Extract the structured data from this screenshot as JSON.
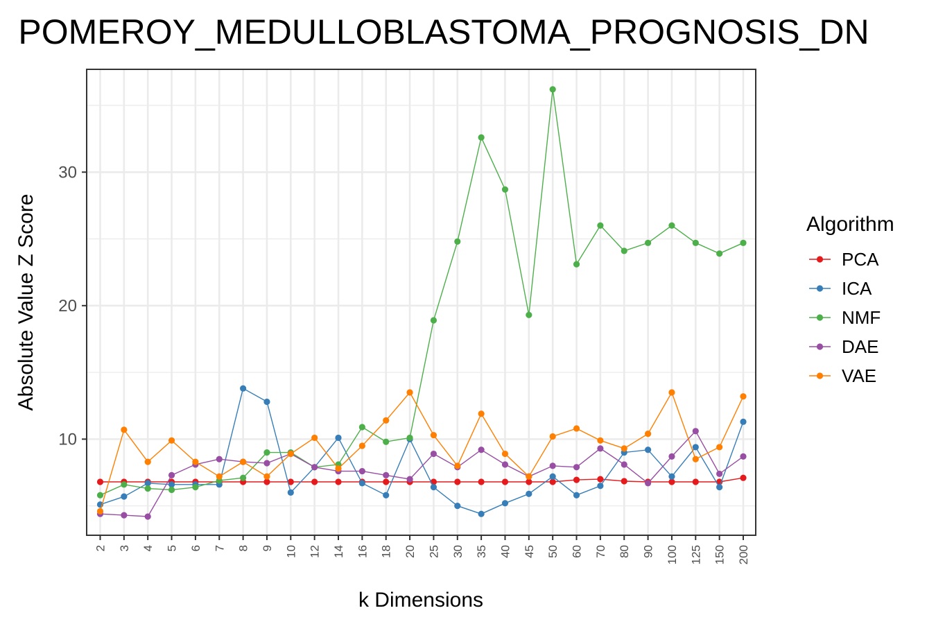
{
  "chart_data": {
    "type": "line",
    "title": "POMEROY_MEDULLOBLASTOMA_PROGNOSIS_DN",
    "xlabel": "k Dimensions",
    "ylabel": "Absolute Value Z Score",
    "categories": [
      "2",
      "3",
      "4",
      "5",
      "6",
      "7",
      "8",
      "9",
      "10",
      "12",
      "14",
      "16",
      "18",
      "20",
      "25",
      "30",
      "35",
      "40",
      "45",
      "50",
      "60",
      "70",
      "80",
      "90",
      "100",
      "125",
      "150",
      "200"
    ],
    "ylim": [
      2.8,
      37.7
    ],
    "yticks": [
      10,
      20,
      30
    ],
    "grid": true,
    "legend": {
      "title": "Algorithm",
      "position": "right"
    },
    "series": [
      {
        "name": "PCA",
        "color": "#e41a1c",
        "values": [
          6.8,
          6.8,
          6.8,
          6.8,
          6.8,
          6.8,
          6.8,
          6.8,
          6.8,
          6.8,
          6.8,
          6.8,
          6.8,
          6.8,
          6.8,
          6.8,
          6.8,
          6.8,
          6.8,
          6.8,
          6.95,
          7.0,
          6.85,
          6.8,
          6.8,
          6.8,
          6.8,
          7.1
        ]
      },
      {
        "name": "ICA",
        "color": "#377eb8",
        "values": [
          5.1,
          5.7,
          6.7,
          6.6,
          6.6,
          6.6,
          13.8,
          12.8,
          6.0,
          7.9,
          10.1,
          6.7,
          5.8,
          10.0,
          6.4,
          5.0,
          4.4,
          5.2,
          5.9,
          7.2,
          5.8,
          6.5,
          9.0,
          9.2,
          7.2,
          9.4,
          6.4,
          11.3
        ]
      },
      {
        "name": "NMF",
        "color": "#4daf4a",
        "values": [
          5.8,
          6.6,
          6.3,
          6.2,
          6.4,
          6.9,
          7.1,
          9.0,
          9.0,
          7.9,
          8.1,
          10.9,
          9.8,
          10.1,
          18.9,
          24.8,
          32.6,
          28.7,
          19.3,
          36.2,
          23.1,
          26.0,
          24.1,
          24.7,
          26.0,
          24.7,
          23.9,
          24.7
        ]
      },
      {
        "name": "DAE",
        "color": "#984ea3",
        "values": [
          4.4,
          4.3,
          4.2,
          7.3,
          8.1,
          8.5,
          8.3,
          8.2,
          8.9,
          7.9,
          7.6,
          7.6,
          7.3,
          7.0,
          8.9,
          7.9,
          9.2,
          8.1,
          7.2,
          8.0,
          7.9,
          9.3,
          8.1,
          6.7,
          8.7,
          10.6,
          7.4,
          8.7
        ]
      },
      {
        "name": "VAE",
        "color": "#ff7f00",
        "values": [
          4.6,
          10.7,
          8.3,
          9.9,
          8.3,
          7.2,
          8.3,
          7.2,
          8.9,
          10.1,
          7.8,
          9.5,
          11.4,
          13.5,
          10.3,
          8.0,
          11.9,
          8.9,
          7.2,
          10.2,
          10.8,
          9.9,
          9.3,
          10.4,
          13.5,
          8.5,
          9.4,
          13.2
        ]
      }
    ]
  }
}
